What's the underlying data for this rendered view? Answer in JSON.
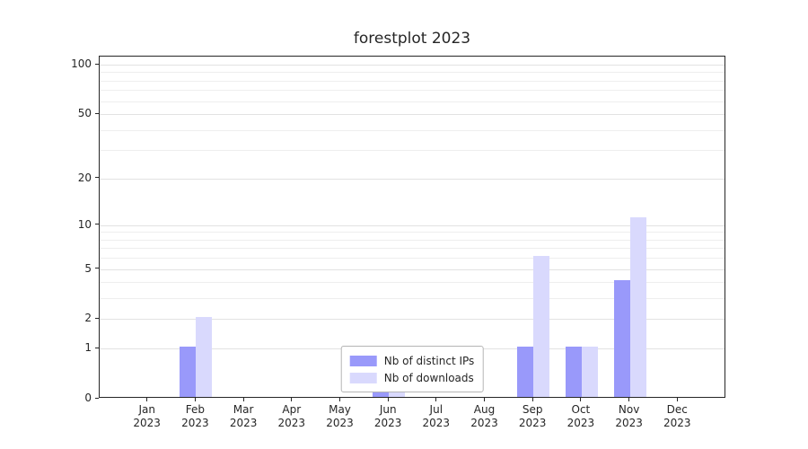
{
  "chart_data": {
    "type": "bar",
    "title": "forestplot 2023",
    "yscale": "log(1+v)",
    "ylim": [
      0,
      113
    ],
    "yticks": [
      0,
      1,
      2,
      5,
      10,
      20,
      50,
      100
    ],
    "minor_gridlines": [
      3,
      4,
      6,
      7,
      8,
      9,
      30,
      40,
      60,
      70,
      80,
      90
    ],
    "categories": [
      "Jan",
      "Feb",
      "Mar",
      "Apr",
      "May",
      "Jun",
      "Jul",
      "Aug",
      "Sep",
      "Oct",
      "Nov",
      "Dec"
    ],
    "year": "2023",
    "series": [
      {
        "name": "Nb of distinct IPs",
        "color": "#9999fa",
        "values": [
          0,
          1,
          0,
          0,
          0,
          1,
          0,
          0,
          1,
          1,
          4,
          0
        ]
      },
      {
        "name": "Nb of downloads",
        "color": "#d9d9fd",
        "values": [
          0,
          2,
          0,
          0,
          0,
          1,
          0,
          0,
          6,
          1,
          11,
          0
        ]
      }
    ],
    "grid": true,
    "legend_position": "lower center"
  }
}
